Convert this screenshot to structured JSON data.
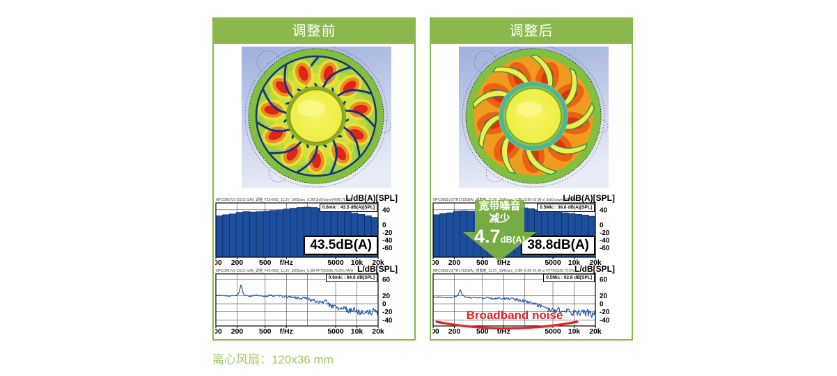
{
  "page": {
    "caption": "离心风扇：120x36 mm"
  },
  "colors": {
    "panel_green": "#8bb84d",
    "caption_green": "#a3c868",
    "bar_blue": "#1d4e9c",
    "bar_stroke": "#0f2f66",
    "line_blue": "#2457ab",
    "arrow_green": "#7cb23e",
    "annotation_red": "#e62222"
  },
  "panels": {
    "before": {
      "header": "调整前"
    },
    "after": {
      "header": "调整后"
    }
  },
  "annotations": {
    "arrow": {
      "line1": "宽带噪音",
      "line2": "减少",
      "value": "4.7",
      "unit": "dB(A)"
    },
    "broadband": {
      "label": "Broadband noise"
    }
  },
  "chart_data": [
    {
      "type": "bar",
      "panel": "before",
      "slot": "octave",
      "title": "MFC0081V3-C61C-GA9_调整_F23+B03_11.3V_1600rpm_0.3M 3rdOctave(4096,75.6%)",
      "unit_label": "L/dB(A)[SPL]",
      "inner_label": "0.6mic : 43.5 dB(A)[SPL]",
      "big_label": "43.5dB(A)",
      "xlabel": "f/Hz",
      "categories": [
        "100",
        "125",
        "160",
        "200",
        "250",
        "315",
        "400",
        "500",
        "630",
        "800",
        "1k",
        "1.25k",
        "1.6k",
        "2k",
        "2.5k",
        "3.15k",
        "4k",
        "5k",
        "6.3k",
        "8k",
        "10k",
        "12.5k",
        "16k",
        "20k"
      ],
      "values": [
        24,
        27,
        29,
        33,
        35,
        34,
        35,
        36,
        38,
        40,
        42,
        44,
        46,
        47,
        46,
        44,
        42,
        40,
        37,
        34,
        31,
        28,
        24,
        20
      ],
      "xticks": [
        [
          100,
          "100"
        ],
        [
          200,
          "200"
        ],
        [
          500,
          "500"
        ],
        [
          1000,
          "f/Hz"
        ],
        [
          5000,
          "5000"
        ],
        [
          10000,
          "10k"
        ],
        [
          20000,
          "20k"
        ]
      ],
      "yticks": [
        [
          40,
          "40"
        ],
        [
          0,
          "0"
        ],
        [
          -20,
          "-20"
        ],
        [
          -40,
          "-40"
        ],
        [
          -60,
          "-60"
        ]
      ],
      "vgrid": [
        200,
        500,
        1000,
        2000,
        5000,
        10000
      ],
      "ylim": [
        -85,
        58
      ],
      "xlim": [
        100,
        20000
      ],
      "grid": true,
      "legend": "none"
    },
    {
      "type": "bar",
      "panel": "after",
      "slot": "octave",
      "title": "MFC0081V3(TR17191BA)_倾角度_11.3V_1545rpm_0.3M (0.08-10.08 s) 3rdOctave(4096,75.0%)",
      "unit_label": "L/dB(A)[SPL]",
      "inner_label": "0.5Mic : 38.8 dB(A)[SPL]",
      "big_label": "38.8dB(A)",
      "xlabel": "f/Hz",
      "categories": [
        "100",
        "125",
        "160",
        "200",
        "250",
        "315",
        "400",
        "500",
        "630",
        "800",
        "1k",
        "1.25k",
        "1.6k",
        "2k",
        "2.5k",
        "3.15k",
        "4k",
        "5k",
        "6.3k",
        "8k",
        "10k",
        "12.5k",
        "16k",
        "20k"
      ],
      "values": [
        27,
        30,
        32,
        36,
        37,
        36,
        36,
        36,
        37,
        38,
        39,
        40,
        42,
        45,
        43,
        40,
        38,
        36,
        34,
        32,
        30,
        28,
        26,
        23
      ],
      "xticks": [
        [
          100,
          "100"
        ],
        [
          200,
          "200"
        ],
        [
          500,
          "500"
        ],
        [
          1000,
          "f/Hz"
        ],
        [
          5000,
          "5000"
        ],
        [
          10000,
          "10k"
        ],
        [
          20000,
          "20k"
        ]
      ],
      "yticks": [
        [
          40,
          "40"
        ],
        [
          0,
          "0"
        ],
        [
          -20,
          "-20"
        ],
        [
          -40,
          "-40"
        ],
        [
          -60,
          "-60"
        ]
      ],
      "vgrid": [
        200,
        500,
        1000,
        2000,
        5000,
        10000
      ],
      "ylim": [
        -85,
        58
      ],
      "xlim": [
        100,
        20000
      ],
      "grid": true,
      "legend": "none"
    },
    {
      "type": "line",
      "panel": "before",
      "slot": "fft",
      "title": "MFC0081V3-C61C-GA9_调整_F03+B03_11.3V_1600rpm_0.3M FFT(65536,75.0%,HAN)",
      "unit_label": "L/dB[SPL]",
      "inner_label": "0.6mic : 64.6 dB[SPL]",
      "xlabel": "f/Hz",
      "points": [
        [
          100,
          22
        ],
        [
          130,
          20
        ],
        [
          160,
          19
        ],
        [
          190,
          21
        ],
        [
          210,
          24
        ],
        [
          228,
          48
        ],
        [
          240,
          30
        ],
        [
          255,
          22
        ],
        [
          290,
          18
        ],
        [
          340,
          20
        ],
        [
          400,
          21
        ],
        [
          460,
          18
        ],
        [
          520,
          19
        ],
        [
          600,
          21
        ],
        [
          680,
          19
        ],
        [
          760,
          22
        ],
        [
          850,
          18
        ],
        [
          950,
          17
        ],
        [
          1100,
          17
        ],
        [
          1300,
          16
        ],
        [
          1600,
          14
        ],
        [
          2000,
          12
        ],
        [
          2400,
          8
        ],
        [
          2800,
          4
        ],
        [
          3200,
          2
        ],
        [
          3600,
          9
        ],
        [
          4000,
          -2
        ],
        [
          4600,
          -7
        ],
        [
          5200,
          -11
        ],
        [
          6000,
          -13
        ],
        [
          6500,
          -6
        ],
        [
          7200,
          -15
        ],
        [
          8000,
          -18
        ],
        [
          9000,
          -15
        ],
        [
          10000,
          -20
        ],
        [
          11500,
          -22
        ],
        [
          13000,
          -17
        ],
        [
          15000,
          -23
        ],
        [
          17000,
          -20
        ],
        [
          20000,
          -21
        ]
      ],
      "xticks": [
        [
          100,
          "100"
        ],
        [
          200,
          "200"
        ],
        [
          500,
          "500"
        ],
        [
          1000,
          "f/Hz"
        ],
        [
          5000,
          "5000"
        ],
        [
          10000,
          "10k"
        ],
        [
          20000,
          "20k"
        ]
      ],
      "yticks": [
        [
          60,
          "60"
        ],
        [
          20,
          "20"
        ],
        [
          0,
          "0"
        ],
        [
          -20,
          "-20"
        ],
        [
          -40,
          "-40"
        ]
      ],
      "vgrid": [
        200,
        500,
        1000,
        2000,
        5000,
        10000
      ],
      "ylim": [
        -55,
        74
      ],
      "xlim": [
        100,
        20000
      ],
      "grid": true,
      "legend": "none",
      "seed": 7
    },
    {
      "type": "line",
      "panel": "after",
      "slot": "fft",
      "title": "MFC0081V3(TR17191BA)_倾角度_11.2V_1545rpm_0.3M (0.08-10.00 s) FFT(65536,75.0%,HAN)",
      "unit_label": "L/dB[SPL]",
      "inner_label": "0.5Mic : 62.8 dB[SPL]",
      "xlabel": "f/Hz",
      "points": [
        [
          100,
          17
        ],
        [
          130,
          16
        ],
        [
          170,
          15
        ],
        [
          200,
          17
        ],
        [
          225,
          20
        ],
        [
          240,
          36
        ],
        [
          255,
          24
        ],
        [
          290,
          16
        ],
        [
          350,
          15
        ],
        [
          420,
          16
        ],
        [
          500,
          14
        ],
        [
          600,
          15
        ],
        [
          700,
          13
        ],
        [
          850,
          14
        ],
        [
          1000,
          13
        ],
        [
          1200,
          12
        ],
        [
          1500,
          10
        ],
        [
          1900,
          7
        ],
        [
          2300,
          3
        ],
        [
          2800,
          -2
        ],
        [
          3300,
          -6
        ],
        [
          3900,
          -10
        ],
        [
          4600,
          -14
        ],
        [
          5300,
          -17
        ],
        [
          6000,
          -15
        ],
        [
          6800,
          -19
        ],
        [
          7600,
          -21
        ],
        [
          8200,
          -7
        ],
        [
          8700,
          -19
        ],
        [
          9500,
          -22
        ],
        [
          11000,
          -24
        ],
        [
          12500,
          -20
        ],
        [
          14000,
          -25
        ],
        [
          16000,
          -22
        ],
        [
          18000,
          -26
        ],
        [
          20000,
          -23
        ]
      ],
      "xticks": [
        [
          100,
          "100"
        ],
        [
          200,
          "200"
        ],
        [
          500,
          "500"
        ],
        [
          1000,
          "f/Hz"
        ],
        [
          5000,
          "5000"
        ],
        [
          10000,
          "10k"
        ],
        [
          20000,
          "20k"
        ]
      ],
      "yticks": [
        [
          60,
          "60"
        ],
        [
          20,
          "20"
        ],
        [
          0,
          "0"
        ],
        [
          -20,
          "-20"
        ],
        [
          -40,
          "-40"
        ]
      ],
      "vgrid": [
        200,
        500,
        1000,
        2000,
        5000,
        10000
      ],
      "ylim": [
        -55,
        74
      ],
      "xlim": [
        100,
        20000
      ],
      "grid": true,
      "legend": "none",
      "seed": 13
    }
  ]
}
